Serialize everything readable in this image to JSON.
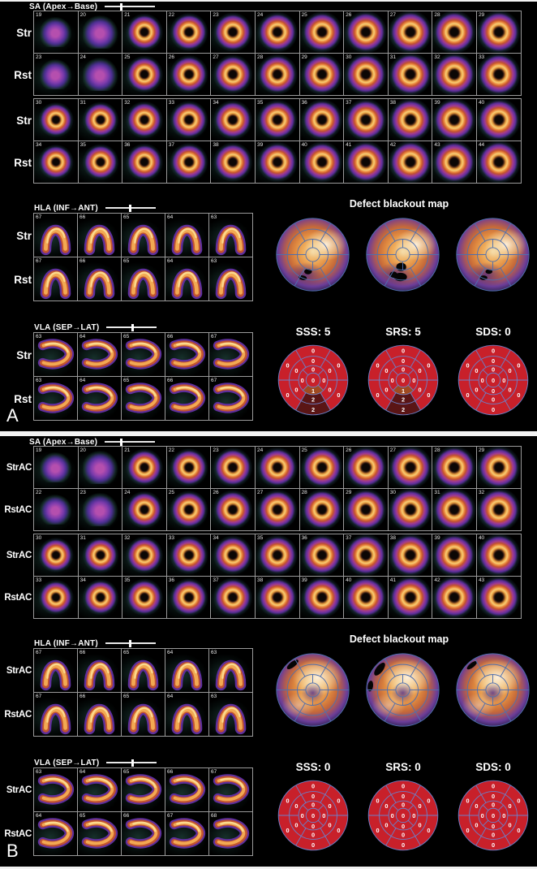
{
  "colors": {
    "background": "#000000",
    "frame_border": "#9a9a9a",
    "score_segment_0": "#c8202a",
    "score_segment_1": "#a04a20",
    "score_segment_2": "#5a1515",
    "polar_grid_blue": "#4f6fae",
    "text": "#ffffff"
  },
  "panels": [
    {
      "label": "A",
      "sa": {
        "title": "SA (Apex→Base)",
        "slider_pct": 30,
        "rows": [
          {
            "label": "Str",
            "frames": [
              19,
              20,
              21,
              22,
              23,
              24,
              25,
              26,
              27,
              28,
              29
            ]
          },
          {
            "label": "Rst",
            "frames": [
              23,
              24,
              25,
              26,
              27,
              28,
              29,
              30,
              31,
              32,
              33
            ]
          },
          {
            "label": "Str",
            "frames": [
              30,
              31,
              32,
              33,
              34,
              35,
              36,
              37,
              38,
              39,
              40
            ]
          },
          {
            "label": "Rst",
            "frames": [
              34,
              35,
              36,
              37,
              38,
              39,
              40,
              41,
              42,
              43,
              44
            ]
          }
        ]
      },
      "hla": {
        "title": "HLA (INF→ANT)",
        "slider_pct": 47,
        "rows": [
          {
            "label": "Str",
            "frames": [
              67,
              66,
              65,
              64,
              63
            ]
          },
          {
            "label": "Rst",
            "frames": [
              67,
              66,
              65,
              64,
              63
            ]
          }
        ]
      },
      "vla": {
        "title": "VLA (SEP→LAT)",
        "slider_pct": 50,
        "rows": [
          {
            "label": "Str",
            "frames": [
              63,
              64,
              65,
              66,
              67
            ]
          },
          {
            "label": "Rst",
            "frames": [
              63,
              64,
              65,
              66,
              67
            ]
          }
        ]
      },
      "blackout": {
        "title": "Defect blackout map",
        "maps": [
          {
            "name": "stress-blackout-map",
            "defects": [
              [
                -6,
                22,
                5,
                3.5,
                0
              ],
              [
                -13,
                30,
                5.5,
                3,
                10
              ]
            ]
          },
          {
            "name": "rest-blackout-map",
            "defects": [
              [
                -2,
                16,
                6.5,
                5.5,
                0
              ],
              [
                -12,
                26,
                5,
                4,
                0
              ],
              [
                -3,
                29,
                8.5,
                5.5,
                0
              ]
            ]
          },
          {
            "name": "reversibility-blackout-map",
            "defects": [
              [
                -5,
                22,
                4.5,
                3,
                0
              ],
              [
                -12,
                30,
                5,
                3,
                0
              ]
            ]
          }
        ]
      },
      "scores": [
        {
          "label": "SSS: 5",
          "values": [
            0,
            0,
            0,
            2,
            0,
            0,
            0,
            0,
            0,
            2,
            0,
            0,
            0,
            0,
            1,
            0,
            0
          ]
        },
        {
          "label": "SRS: 5",
          "values": [
            0,
            0,
            0,
            2,
            0,
            0,
            0,
            0,
            0,
            2,
            0,
            0,
            0,
            0,
            1,
            0,
            0
          ]
        },
        {
          "label": "SDS: 0",
          "values": [
            0,
            0,
            0,
            0,
            0,
            0,
            0,
            0,
            0,
            0,
            0,
            0,
            0,
            0,
            0,
            0,
            0
          ]
        }
      ]
    },
    {
      "label": "B",
      "sa": {
        "title": "SA (Apex→Base)",
        "slider_pct": 30,
        "rows": [
          {
            "label": "StrAC",
            "frames": [
              19,
              20,
              21,
              22,
              23,
              24,
              25,
              26,
              27,
              28,
              29
            ]
          },
          {
            "label": "RstAC",
            "frames": [
              22,
              23,
              24,
              25,
              26,
              27,
              28,
              29,
              30,
              31,
              32
            ]
          },
          {
            "label": "StrAC",
            "frames": [
              30,
              31,
              32,
              33,
              34,
              35,
              36,
              37,
              38,
              39,
              40
            ]
          },
          {
            "label": "RstAC",
            "frames": [
              33,
              34,
              35,
              36,
              37,
              38,
              39,
              40,
              41,
              42,
              43
            ]
          }
        ]
      },
      "hla": {
        "title": "HLA (INF→ANT)",
        "slider_pct": 47,
        "rows": [
          {
            "label": "StrAC",
            "frames": [
              67,
              66,
              65,
              64,
              63
            ]
          },
          {
            "label": "RstAC",
            "frames": [
              67,
              66,
              65,
              64,
              63
            ]
          }
        ]
      },
      "vla": {
        "title": "VLA (SEP→LAT)",
        "slider_pct": 50,
        "rows": [
          {
            "label": "StrAC",
            "frames": [
              63,
              64,
              65,
              66,
              67
            ]
          },
          {
            "label": "RstAC",
            "frames": [
              64,
              65,
              66,
              67,
              68
            ]
          }
        ]
      },
      "blackout": {
        "title": "Defect blackout map",
        "maps": [
          {
            "name": "stress-blackout-map",
            "defects": [
              [
                -26,
                -33,
                9,
                3.5,
                -38
              ]
            ]
          },
          {
            "name": "rest-blackout-map",
            "defects": [
              [
                -30,
                -27,
                10,
                4.5,
                -52
              ],
              [
                -42,
                -5,
                3.5,
                7,
                8
              ]
            ]
          },
          {
            "name": "reversibility-blackout-map",
            "defects": [
              [
                -27,
                -32,
                8,
                3,
                -38
              ]
            ]
          }
        ]
      },
      "scores": [
        {
          "label": "SSS: 0",
          "values": [
            0,
            0,
            0,
            0,
            0,
            0,
            0,
            0,
            0,
            0,
            0,
            0,
            0,
            0,
            0,
            0,
            0
          ]
        },
        {
          "label": "SRS: 0",
          "values": [
            0,
            0,
            0,
            0,
            0,
            0,
            0,
            0,
            0,
            0,
            0,
            0,
            0,
            0,
            0,
            0,
            0
          ]
        },
        {
          "label": "SDS: 0",
          "values": [
            0,
            0,
            0,
            0,
            0,
            0,
            0,
            0,
            0,
            0,
            0,
            0,
            0,
            0,
            0,
            0,
            0
          ]
        }
      ]
    }
  ]
}
